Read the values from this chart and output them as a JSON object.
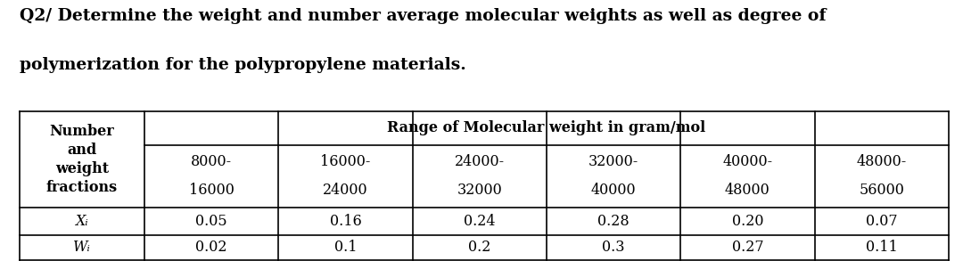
{
  "title_line1": "Q2/ Determine the weight and number average molecular weights as well as degree of",
  "title_line2": "polymerization for the polypropylene materials.",
  "col_header_left": [
    "Number",
    "and",
    "weight",
    "fractions"
  ],
  "col_header_right": "Range of Molecular weight in gram/mol",
  "ranges": [
    "8000-\n16000",
    "16000-\n24000",
    "24000-\n32000",
    "32000-\n40000",
    "40000-\n48000",
    "48000-\n56000"
  ],
  "xi_label": "Xᵢ",
  "wi_label": "Wᵢ",
  "xi_values": [
    "0.05",
    "0.16",
    "0.24",
    "0.28",
    "0.20",
    "0.07"
  ],
  "wi_values": [
    "0.02",
    "0.1",
    "0.2",
    "0.3",
    "0.27",
    "0.11"
  ],
  "bg_color": "#ffffff",
  "text_color": "#000000",
  "font_size_title": 13.5,
  "font_size_table": 11.5,
  "line_color": "#000000"
}
